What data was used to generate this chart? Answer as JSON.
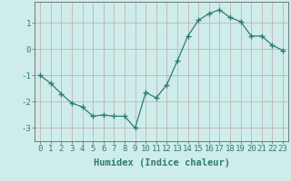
{
  "x": [
    0,
    1,
    2,
    3,
    4,
    5,
    6,
    7,
    8,
    9,
    10,
    11,
    12,
    13,
    14,
    15,
    16,
    17,
    18,
    19,
    20,
    21,
    22,
    23
  ],
  "y": [
    -1.0,
    -1.3,
    -1.7,
    -2.05,
    -2.2,
    -2.55,
    -2.5,
    -2.55,
    -2.55,
    -3.0,
    -1.65,
    -1.85,
    -1.35,
    -0.45,
    0.5,
    1.1,
    1.35,
    1.5,
    1.2,
    1.05,
    0.5,
    0.5,
    0.15,
    -0.05
  ],
  "line_color": "#2e7d6e",
  "marker": "+",
  "marker_size": 4,
  "marker_lw": 1.0,
  "bg_color": "#ceecea",
  "grid_color": "#c0a8a8",
  "axis_color": "#666666",
  "xlabel": "Humidex (Indice chaleur)",
  "xlabel_fontsize": 7.5,
  "tick_fontsize": 6.5,
  "ylim": [
    -3.5,
    1.8
  ],
  "xlim": [
    -0.5,
    23.5
  ],
  "yticks": [
    -3,
    -2,
    -1,
    0,
    1
  ],
  "xtick_labels": [
    "0",
    "1",
    "2",
    "3",
    "4",
    "5",
    "6",
    "7",
    "8",
    "9",
    "10",
    "11",
    "12",
    "13",
    "14",
    "15",
    "16",
    "17",
    "18",
    "19",
    "20",
    "21",
    "22",
    "23"
  ]
}
